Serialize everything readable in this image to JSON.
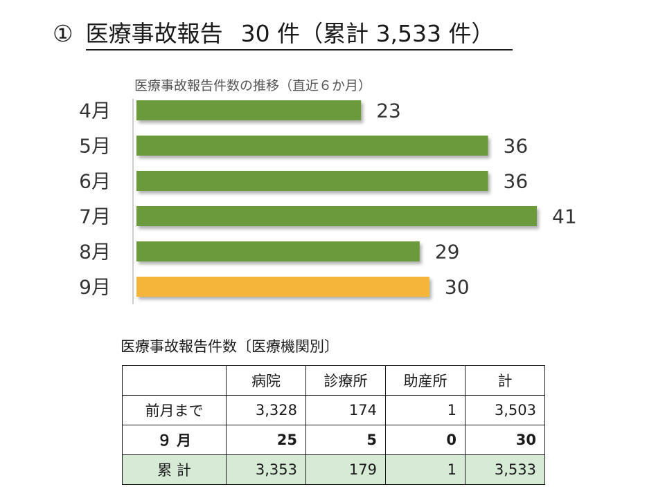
{
  "title": {
    "number": "①",
    "heading": "医療事故報告",
    "summary": "30 件（累計 3,533 件）"
  },
  "chart_data": {
    "type": "bar",
    "orientation": "horizontal",
    "title": "医療事故報告件数の推移（直近６か月）",
    "categories": [
      "4月",
      "5月",
      "6月",
      "7月",
      "8月",
      "9月"
    ],
    "values": [
      23,
      36,
      36,
      41,
      29,
      30
    ],
    "highlight": "9月",
    "colors": {
      "default": "#6a9a3a",
      "highlight": "#f5b53b"
    },
    "xlim": [
      0,
      41
    ],
    "grid": false,
    "legend": "none"
  },
  "table": {
    "caption": "医療事故報告件数〔医療機関別〕",
    "headers": [
      "",
      "病院",
      "診療所",
      "助産所",
      "計"
    ],
    "rows": [
      {
        "label": "前月まで",
        "values": [
          "3,328",
          "174",
          "1",
          "3,503"
        ]
      },
      {
        "label": "９ 月",
        "values": [
          "25",
          "5",
          "0",
          "30"
        ]
      },
      {
        "label": "累 計",
        "values": [
          "3,353",
          "179",
          "1",
          "3,533"
        ]
      }
    ]
  }
}
